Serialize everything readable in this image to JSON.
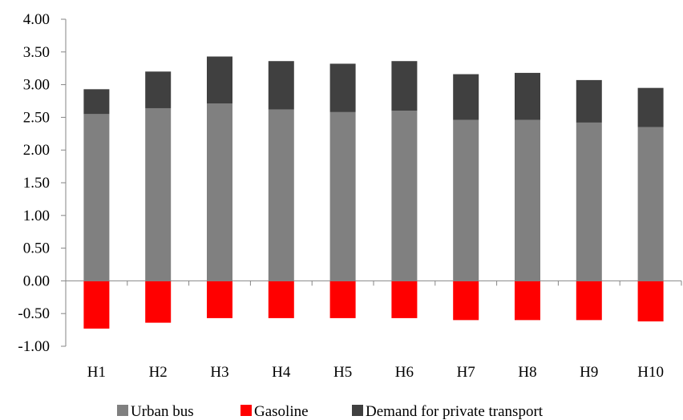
{
  "chart_data": {
    "type": "bar",
    "stacked": true,
    "categories": [
      "H1",
      "H2",
      "H3",
      "H4",
      "H5",
      "H6",
      "H7",
      "H8",
      "H9",
      "H10"
    ],
    "series": [
      {
        "name": "Urban bus",
        "color": "#808080",
        "values": [
          2.55,
          2.64,
          2.71,
          2.62,
          2.58,
          2.6,
          2.46,
          2.46,
          2.42,
          2.35
        ]
      },
      {
        "name": "Gasoline",
        "color": "#ff0000",
        "values": [
          -0.73,
          -0.64,
          -0.57,
          -0.57,
          -0.57,
          -0.57,
          -0.6,
          -0.6,
          -0.6,
          -0.62
        ]
      },
      {
        "name": "Demand for private transport",
        "color": "#404040",
        "values": [
          0.38,
          0.56,
          0.72,
          0.74,
          0.74,
          0.76,
          0.7,
          0.72,
          0.65,
          0.6
        ]
      }
    ],
    "yticks": [
      "4.00",
      "3.50",
      "3.00",
      "2.50",
      "2.00",
      "1.50",
      "1.00",
      "0.50",
      "0.00",
      "-0.50",
      "-1.00"
    ],
    "ylim": [
      -1.0,
      4.0
    ],
    "grid": false,
    "legend": "bottom",
    "title": "",
    "xlabel": "",
    "ylabel": ""
  }
}
